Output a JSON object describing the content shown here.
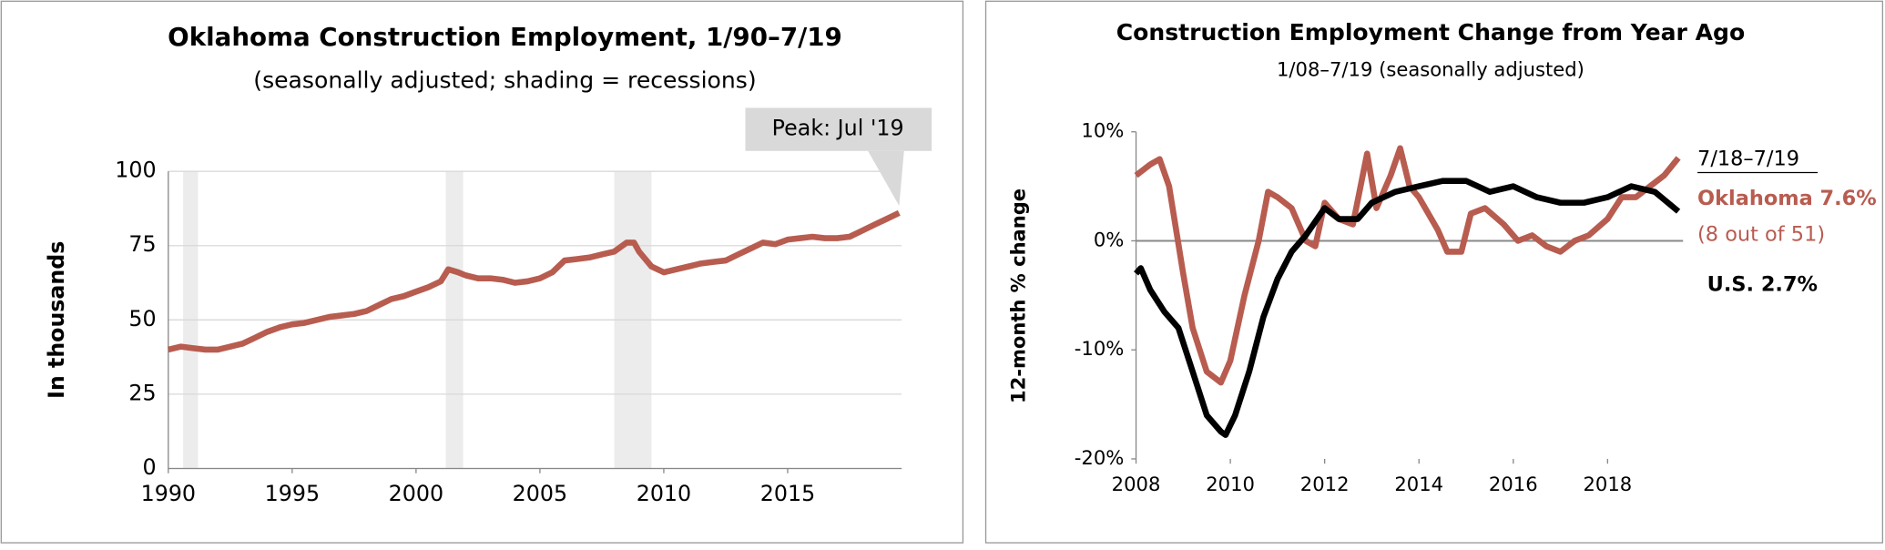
{
  "chart_data": [
    {
      "type": "line",
      "title": "Oklahoma Construction Employment, 1/90–7/19",
      "subtitle": "(seasonally adjusted; shading = recessions)",
      "y_label": "In thousands",
      "annotation": "Peak: Jul '19",
      "xlim": [
        1990,
        2019.6
      ],
      "xticks": [
        1990,
        1995,
        2000,
        2005,
        2010,
        2015
      ],
      "ylim": [
        0,
        100
      ],
      "yticks": [
        0,
        25,
        50,
        75,
        100
      ],
      "grid": true,
      "recessions": [
        [
          1990.6,
          1991.2
        ],
        [
          2001.2,
          2001.9
        ],
        [
          2008.0,
          2009.5
        ]
      ],
      "series": [
        {
          "name": null,
          "color": "#b85c50",
          "x": [
            1990,
            1990.5,
            1991,
            1991.5,
            1992,
            1992.5,
            1993,
            1993.5,
            1994,
            1994.5,
            1995,
            1995.5,
            1996,
            1996.5,
            1997,
            1997.5,
            1998,
            1998.5,
            1999,
            1999.5,
            2000,
            2000.5,
            2001,
            2001.3,
            2001.7,
            2002,
            2002.5,
            2003,
            2003.5,
            2004,
            2004.5,
            2005,
            2005.5,
            2006,
            2006.5,
            2007,
            2007.5,
            2008,
            2008.5,
            2008.8,
            2009,
            2009.5,
            2010,
            2010.5,
            2011,
            2011.5,
            2012,
            2012.5,
            2013,
            2013.5,
            2014,
            2014.5,
            2015,
            2015.5,
            2016,
            2016.5,
            2017,
            2017.5,
            2018,
            2018.5,
            2019,
            2019.5
          ],
          "values": [
            40,
            41,
            40.5,
            40,
            40,
            41,
            42,
            44,
            46,
            47.5,
            48.5,
            49,
            50,
            51,
            51.5,
            52,
            53,
            55,
            57,
            58,
            59.5,
            61,
            63,
            67,
            66,
            65,
            64,
            64,
            63.5,
            62.5,
            63,
            64,
            66,
            70,
            70.5,
            71,
            72,
            73,
            76,
            76,
            73,
            68,
            66,
            67,
            68,
            69,
            69.5,
            70,
            72,
            74,
            76,
            75.5,
            77,
            77.5,
            78,
            77.5,
            77.5,
            78,
            80,
            82,
            84,
            86
          ]
        }
      ]
    },
    {
      "type": "line",
      "title": "Construction Employment Change from Year Ago",
      "subtitle": "1/08–7/19 (seasonally adjusted)",
      "y_label": "12-month % change",
      "legend_title": "7/18–7/19",
      "note": "(8 out of 51)",
      "xlim": [
        2008,
        2019.6
      ],
      "xticks": [
        2008,
        2010,
        2012,
        2014,
        2016,
        2018
      ],
      "ylim": [
        -20,
        10
      ],
      "yticks": [
        {
          "value": -20,
          "label": "-20%"
        },
        {
          "value": -10,
          "label": "-10%"
        },
        {
          "value": 0,
          "label": "0%"
        },
        {
          "value": 10,
          "label": "10%"
        }
      ],
      "zero_line": true,
      "series": [
        {
          "name": "Oklahoma 7.6%",
          "color": "#b85c50",
          "x": [
            2008,
            2008.3,
            2008.5,
            2008.7,
            2009,
            2009.2,
            2009.5,
            2009.8,
            2010,
            2010.3,
            2010.6,
            2010.8,
            2011,
            2011.3,
            2011.6,
            2011.8,
            2012,
            2012.3,
            2012.6,
            2012.9,
            2013.1,
            2013.4,
            2013.6,
            2013.8,
            2014,
            2014.4,
            2014.6,
            2014.9,
            2015.1,
            2015.4,
            2015.8,
            2016.1,
            2016.4,
            2016.7,
            2017,
            2017.3,
            2017.6,
            2018,
            2018.3,
            2018.6,
            2018.9,
            2019.2,
            2019.5
          ],
          "values": [
            6,
            7,
            7.5,
            5,
            -3,
            -8,
            -12,
            -13,
            -11,
            -5,
            0,
            4.5,
            4,
            3,
            0,
            -0.5,
            3.5,
            2,
            1.5,
            8,
            3,
            6,
            8.5,
            5,
            4,
            1,
            -1,
            -1,
            2.5,
            3,
            1.5,
            0,
            0.5,
            -0.5,
            -1,
            0,
            0.5,
            2,
            4,
            4,
            5,
            6,
            7.6
          ]
        },
        {
          "name": "U.S. 2.7%",
          "color": "#000000",
          "x": [
            2008,
            2008.1,
            2008.3,
            2008.6,
            2008.9,
            2009.2,
            2009.5,
            2009.8,
            2009.9,
            2010.1,
            2010.4,
            2010.7,
            2011,
            2011.3,
            2011.6,
            2012,
            2012.3,
            2012.7,
            2013,
            2013.5,
            2014,
            2014.5,
            2015,
            2015.5,
            2016,
            2016.5,
            2017,
            2017.5,
            2018,
            2018.5,
            2019,
            2019.5
          ],
          "values": [
            -3,
            -2.5,
            -4.5,
            -6.5,
            -8,
            -12,
            -16,
            -17.5,
            -17.8,
            -16,
            -12,
            -7,
            -3.5,
            -1,
            0.5,
            3,
            2,
            2,
            3.5,
            4.5,
            5,
            5.5,
            5.5,
            4.5,
            5,
            4,
            3.5,
            3.5,
            4,
            5,
            4.5,
            2.7
          ]
        }
      ]
    }
  ]
}
